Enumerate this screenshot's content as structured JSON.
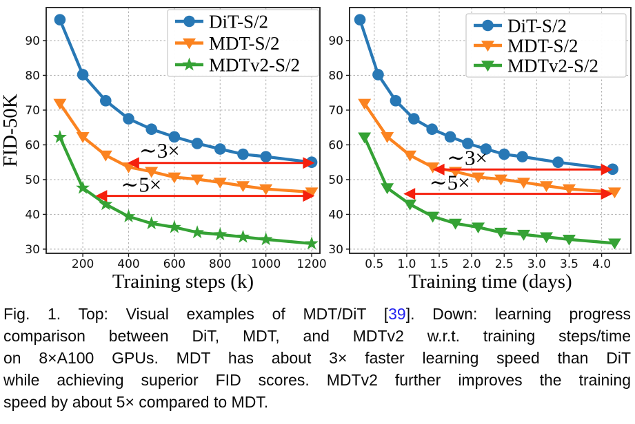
{
  "figure": {
    "colors": {
      "dit_blue": "#2878b5",
      "mdt_orange": "#fb8320",
      "mdtv2_green": "#35a235",
      "arrow_red": "#f5200d",
      "grid_gray": "#b3b3b3",
      "citation_blue": "#2222f0",
      "text_black": "#0a0a0a"
    },
    "caption": {
      "lines": [
        {
          "justify": true,
          "segments": [
            {
              "text": "Fig. 1. Top: Visual examples of MDT/DiT ["
            },
            {
              "text": "39",
              "cite": true
            },
            {
              "text": "]. Down: learning progress"
            }
          ]
        },
        {
          "justify": true,
          "segments": [
            {
              "text": "comparison between DiT, MDT, and MDTv2 w.r.t. training steps/time"
            }
          ]
        },
        {
          "justify": true,
          "segments": [
            {
              "text": "on 8×A100 GPUs. MDT has about 3× faster learning speed than DiT"
            }
          ]
        },
        {
          "justify": true,
          "segments": [
            {
              "text": "while achieving superior FID scores. MDTv2 further improves the training"
            }
          ]
        },
        {
          "justify": false,
          "segments": [
            {
              "text": "speed by about 5× compared to MDT."
            }
          ]
        }
      ]
    }
  },
  "chart_data": [
    {
      "type": "line",
      "title": "",
      "xlabel": "Training steps (k)",
      "ylabel": "FID-50K",
      "xlim": [
        40,
        1236
      ],
      "ylim": [
        28.8,
        99.5
      ],
      "xticks": [
        200,
        400,
        600,
        800,
        1000,
        1200
      ],
      "xtick_labels": [
        "200",
        "400",
        "600",
        "800",
        "1000",
        "1200"
      ],
      "yticks": [
        30,
        40,
        50,
        60,
        70,
        80,
        90
      ],
      "ytick_labels": [
        "30",
        "40",
        "50",
        "60",
        "70",
        "80",
        "90"
      ],
      "grid": true,
      "legend_position": "top-right",
      "series": [
        {
          "name": "DiT-S/2",
          "color": "#2878b5",
          "marker": "circle",
          "x": [
            100,
            200,
            300,
            400,
            500,
            600,
            700,
            800,
            900,
            1000,
            1200
          ],
          "y": [
            96,
            80.2,
            72.7,
            67.5,
            64.5,
            62.3,
            60.4,
            58.8,
            57.3,
            56.6,
            55
          ]
        },
        {
          "name": "MDT-S/2",
          "color": "#fb8320",
          "marker": "triangle-down",
          "x": [
            100,
            200,
            300,
            400,
            500,
            600,
            700,
            800,
            900,
            1000,
            1200
          ],
          "y": [
            71.9,
            62.3,
            57,
            53.6,
            52.3,
            50.7,
            50.1,
            49.2,
            48.2,
            47.3,
            46.4
          ]
        },
        {
          "name": "MDTv2-S/2",
          "color": "#35a235",
          "marker": "star",
          "x": [
            100,
            200,
            300,
            400,
            500,
            600,
            700,
            800,
            900,
            1000,
            1200
          ],
          "y": [
            62.2,
            47.6,
            42.9,
            39.4,
            37.4,
            36.3,
            34.8,
            34.2,
            33.5,
            32.8,
            31.6
          ]
        }
      ],
      "annotations": [
        {
          "text": "∼3×",
          "x": 535,
          "y": 58.3
        },
        {
          "text": "∼5×",
          "x": 455,
          "y": 48.5
        }
      ],
      "arrows": [
        {
          "y": 54.8,
          "x1": 395,
          "x2": 1213
        },
        {
          "y": 45.3,
          "x1": 255,
          "x2": 1213
        }
      ]
    },
    {
      "type": "line",
      "title": "",
      "xlabel": "Training time (days)",
      "ylabel": "",
      "xlim": [
        0.12,
        4.45
      ],
      "ylim": [
        28.8,
        99.5
      ],
      "xticks": [
        0.5,
        1,
        1.5,
        2,
        2.5,
        3,
        3.5,
        4
      ],
      "xtick_labels": [
        "0.5",
        "1.0",
        "1.5",
        "2.0",
        "2.5",
        "3.0",
        "3.5",
        "4.0"
      ],
      "yticks": [
        30,
        40,
        50,
        60,
        70,
        80,
        90
      ],
      "ytick_labels": [
        "30",
        "40",
        "50",
        "60",
        "70",
        "80",
        "90"
      ],
      "grid": true,
      "legend_position": "top-right",
      "series": [
        {
          "name": "DiT-S/2",
          "color": "#2878b5",
          "marker": "circle",
          "x": [
            0.28,
            0.56,
            0.83,
            1.11,
            1.39,
            1.67,
            1.94,
            2.22,
            2.5,
            2.78,
            3.33,
            4.17
          ],
          "y": [
            96,
            80.2,
            72.7,
            67.5,
            64.5,
            62.3,
            60.4,
            58.8,
            57.3,
            56.6,
            55,
            53
          ]
        },
        {
          "name": "MDT-S/2",
          "color": "#fb8320",
          "marker": "triangle-down",
          "x": [
            0.35,
            0.7,
            1.05,
            1.4,
            1.75,
            2.1,
            2.45,
            2.8,
            3.15,
            3.5,
            4.2
          ],
          "y": [
            71.9,
            62.3,
            57,
            53.6,
            52.3,
            50.7,
            50.1,
            49.2,
            48.2,
            47.3,
            46.4
          ]
        },
        {
          "name": "MDTv2-S/2",
          "color": "#35a235",
          "marker": "triangle-down",
          "x": [
            0.35,
            0.7,
            1.05,
            1.4,
            1.75,
            2.1,
            2.45,
            2.8,
            3.15,
            3.5,
            4.2
          ],
          "y": [
            62.2,
            47.6,
            42.9,
            39.4,
            37.4,
            36.3,
            34.8,
            34.2,
            33.5,
            32.8,
            31.7
          ]
        }
      ],
      "annotations": [
        {
          "text": "∼3×",
          "x": 1.93,
          "y": 56.2
        },
        {
          "text": "∼5×",
          "x": 1.66,
          "y": 49.1
        }
      ],
      "arrows": [
        {
          "y": 52.9,
          "x1": 1.4,
          "x2": 4.17
        },
        {
          "y": 45.9,
          "x1": 0.95,
          "x2": 4.17
        }
      ]
    }
  ]
}
